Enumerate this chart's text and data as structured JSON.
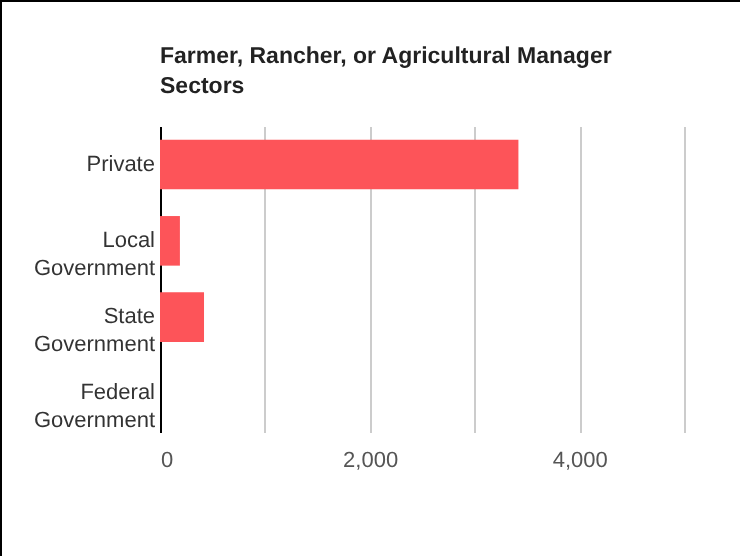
{
  "chart_data": {
    "type": "bar",
    "orientation": "horizontal",
    "title": "Farmer, Rancher, or Agricultural Manager Sectors",
    "categories": [
      "Private",
      "Local Government",
      "State Government",
      "Federal Government"
    ],
    "values": [
      3420,
      190,
      420,
      0
    ],
    "color": "#fd5459",
    "xlim": [
      0,
      5000
    ],
    "xticks": [
      0,
      {
        "value": 1000,
        "label": null
      },
      {
        "value": 2000,
        "label": "2,000"
      },
      {
        "value": 3000,
        "label": null
      },
      {
        "value": 4000,
        "label": "4,000"
      },
      {
        "value": 5000,
        "label": null
      }
    ],
    "grid": "x"
  }
}
